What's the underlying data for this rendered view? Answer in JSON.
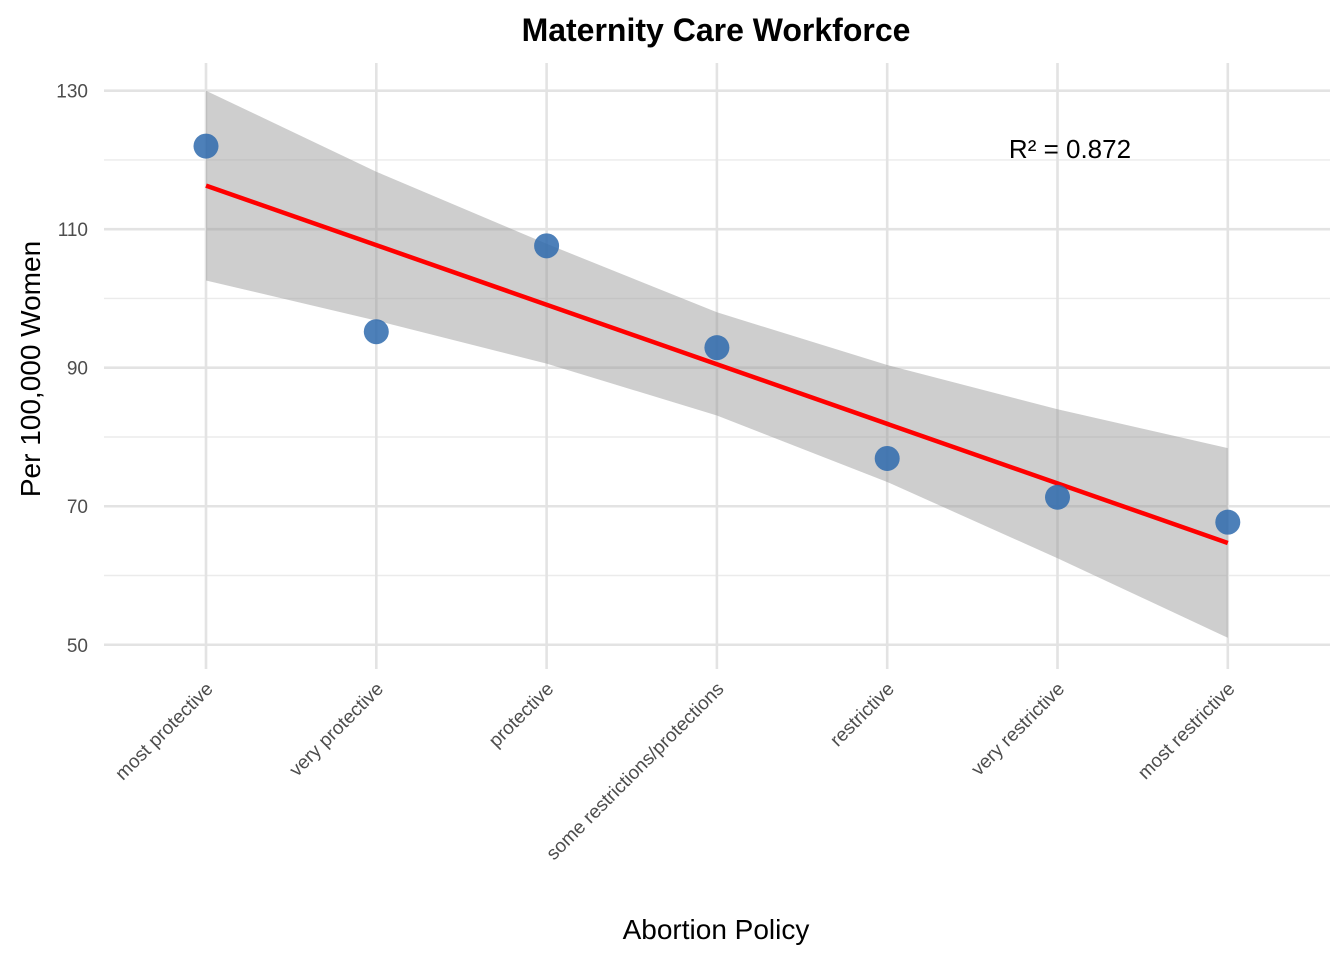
{
  "chart_data": {
    "type": "scatter",
    "title": "Maternity Care Workforce",
    "xlabel": "Abortion Policy",
    "ylabel": "Per 100,000 Women",
    "categories": [
      "most protective",
      "very protective",
      "protective",
      "some restrictions/protections",
      "restrictive",
      "very restrictive",
      "most restrictive"
    ],
    "ylim": [
      46.5,
      134
    ],
    "yticks": [
      50,
      70,
      90,
      110,
      130
    ],
    "grid": true,
    "series": [
      {
        "values": [
          122,
          95.2,
          107.6,
          92.9,
          76.9,
          71.3,
          67.7
        ],
        "color": "#2e6aad"
      }
    ],
    "trend_line": {
      "start": 116.3,
      "end": 64.7,
      "color": "#ff0000"
    },
    "confidence_band": {
      "upper": [
        130.0,
        118.3,
        107.9,
        98.0,
        90.4,
        84.0,
        78.4
      ],
      "lower": [
        102.6,
        96.8,
        90.6,
        83.1,
        73.5,
        62.5,
        51.0
      ],
      "color": "#999999"
    },
    "annotation": "R² = 0.872"
  }
}
